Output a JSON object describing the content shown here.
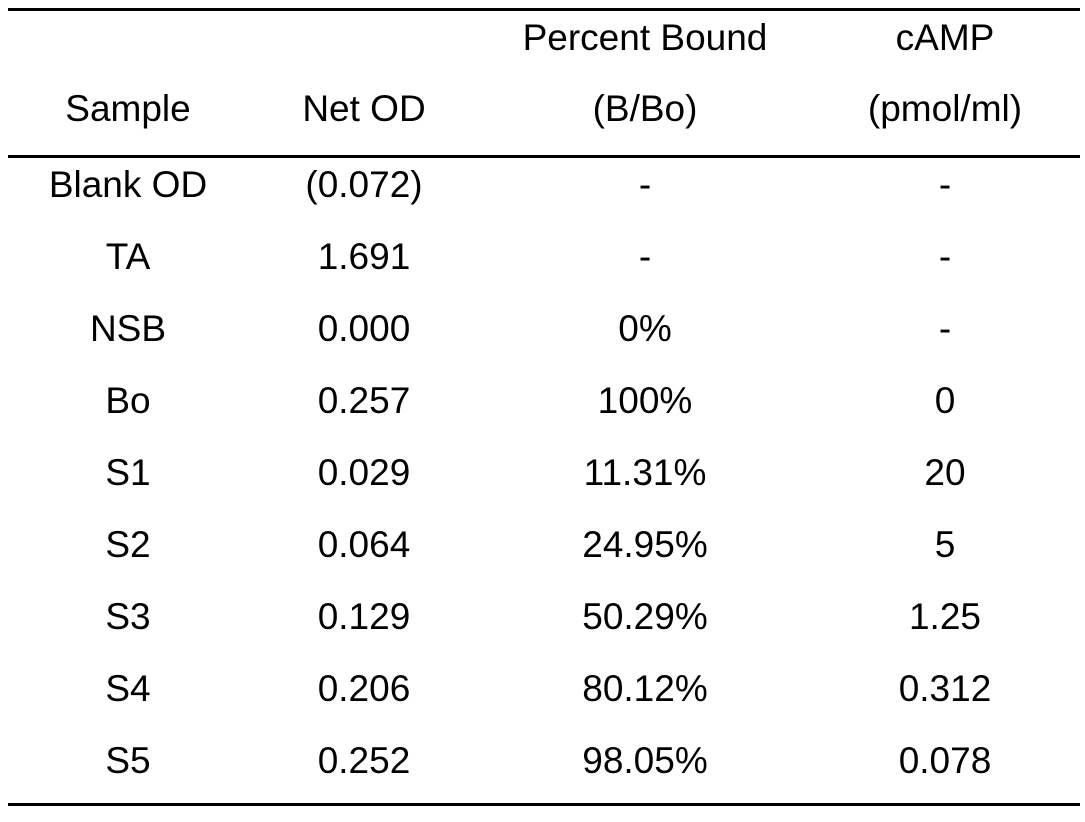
{
  "table": {
    "header_top": [
      "",
      "",
      "Percent Bound",
      "cAMP"
    ],
    "header_bottom": [
      "Sample",
      "Net OD",
      "(B/Bo)",
      "(pmol/ml)"
    ],
    "rows": [
      [
        "Blank OD",
        "(0.072)",
        "-",
        "-"
      ],
      [
        "TA",
        "1.691",
        "-",
        "-"
      ],
      [
        "NSB",
        "0.000",
        "0%",
        "-"
      ],
      [
        "Bo",
        "0.257",
        "100%",
        "0"
      ],
      [
        "S1",
        "0.029",
        "11.31%",
        "20"
      ],
      [
        "S2",
        "0.064",
        "24.95%",
        "5"
      ],
      [
        "S3",
        "0.129",
        "50.29%",
        "1.25"
      ],
      [
        "S4",
        "0.206",
        "80.12%",
        "0.312"
      ],
      [
        "S5",
        "0.252",
        "98.05%",
        "0.078"
      ]
    ]
  }
}
